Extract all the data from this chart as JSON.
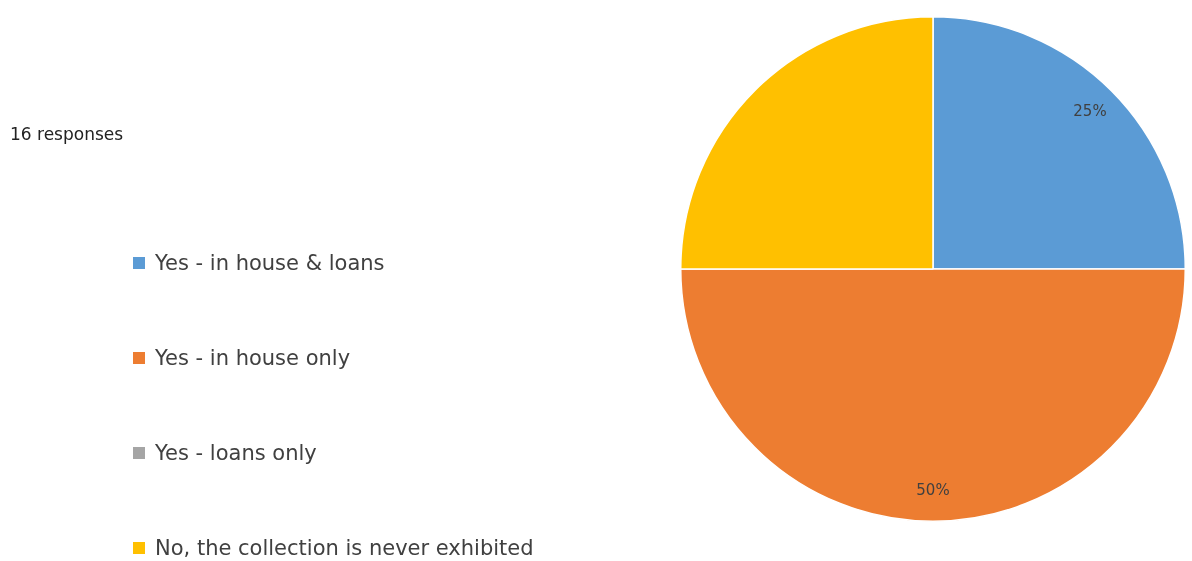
{
  "chart_data": {
    "type": "pie",
    "categories": [
      "Yes - in house & loans",
      "Yes - in house only",
      "Yes - loans only",
      "No, the collection is never exhibited"
    ],
    "values": [
      25,
      50,
      0,
      25
    ],
    "colors": [
      "#5b9bd5",
      "#ed7d31",
      "#a5a5a5",
      "#ffc000"
    ],
    "value_labels": [
      "25%",
      "50%",
      null,
      null
    ],
    "annotations": [
      "16 responses"
    ],
    "legend": "left"
  }
}
